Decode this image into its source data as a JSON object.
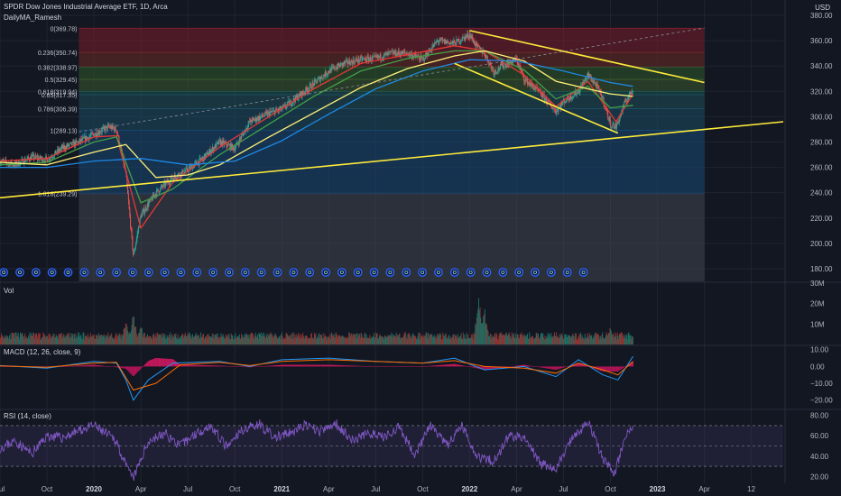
{
  "header": {
    "symbol_line": "SPDR Dow Jones Industrial Average ETF, 1D, Arca",
    "indicator_label": "DailyMA_Ramesh",
    "currency": "USD"
  },
  "panes": {
    "volume_label": "Vol",
    "macd_label": "MACD (12, 26, close, 9)",
    "rsi_label": "RSI (14, close)"
  },
  "colors": {
    "background": "#131722",
    "grid": "#1f2430",
    "candle_up": "#26a69a",
    "candle_down": "#ef5350",
    "trendline": "#ffeb3b",
    "ma_fast": "#e53935",
    "ma_mid": "#43a047",
    "ma_slow": "#fff176",
    "ma_long": "#1e88e5",
    "macd_line": "#2196f3",
    "signal_line": "#ff6d00",
    "rsi_line": "#7e57c2",
    "event_marker": "#2962ff"
  },
  "chart_data": [
    {
      "type": "candlestick",
      "title": "SPDR Dow Jones Industrial Average ETF, 1D, Arca",
      "ylabel": "USD",
      "ylim": [
        170,
        385
      ],
      "y_ticks": [
        "380.00",
        "360.00",
        "340.00",
        "320.00",
        "300.00",
        "280.00",
        "260.00",
        "240.00",
        "220.00",
        "200.00",
        "180.00"
      ],
      "x_ticks": [
        "Jul",
        "Oct",
        "2020",
        "Apr",
        "Jul",
        "Oct",
        "2021",
        "Apr",
        "Jul",
        "Oct",
        "2022",
        "Apr",
        "Jul",
        "Oct",
        "2023",
        "Apr",
        "12"
      ],
      "x_range": [
        2019.5,
        2023.67
      ],
      "price_path": [
        [
          2019.5,
          265
        ],
        [
          2019.58,
          262
        ],
        [
          2019.67,
          268
        ],
        [
          2019.75,
          266
        ],
        [
          2019.83,
          275
        ],
        [
          2019.92,
          280
        ],
        [
          2020.0,
          286
        ],
        [
          2020.08,
          292
        ],
        [
          2020.12,
          290
        ],
        [
          2020.17,
          255
        ],
        [
          2020.21,
          190
        ],
        [
          2020.25,
          222
        ],
        [
          2020.33,
          240
        ],
        [
          2020.42,
          252
        ],
        [
          2020.5,
          258
        ],
        [
          2020.58,
          267
        ],
        [
          2020.67,
          280
        ],
        [
          2020.75,
          275
        ],
        [
          2020.83,
          296
        ],
        [
          2020.92,
          302
        ],
        [
          2021.0,
          306
        ],
        [
          2021.08,
          315
        ],
        [
          2021.17,
          326
        ],
        [
          2021.25,
          336
        ],
        [
          2021.33,
          342
        ],
        [
          2021.42,
          345
        ],
        [
          2021.5,
          346
        ],
        [
          2021.58,
          350
        ],
        [
          2021.67,
          350
        ],
        [
          2021.75,
          345
        ],
        [
          2021.83,
          360
        ],
        [
          2021.92,
          358
        ],
        [
          2022.0,
          365
        ],
        [
          2022.04,
          355
        ],
        [
          2022.08,
          350
        ],
        [
          2022.13,
          335
        ],
        [
          2022.17,
          340
        ],
        [
          2022.25,
          345
        ],
        [
          2022.29,
          330
        ],
        [
          2022.38,
          318
        ],
        [
          2022.46,
          304
        ],
        [
          2022.5,
          312
        ],
        [
          2022.58,
          320
        ],
        [
          2022.63,
          333
        ],
        [
          2022.67,
          326
        ],
        [
          2022.71,
          314
        ],
        [
          2022.75,
          294
        ],
        [
          2022.78,
          292
        ],
        [
          2022.83,
          312
        ],
        [
          2022.87,
          322
        ]
      ],
      "moving_averages": [
        {
          "name": "MA fast",
          "color": "#e53935",
          "values": [
            [
              2019.5,
              265
            ],
            [
              2019.75,
              267
            ],
            [
              2020.0,
              284
            ],
            [
              2020.12,
              285
            ],
            [
              2020.25,
              212
            ],
            [
              2020.42,
              248
            ],
            [
              2020.67,
              276
            ],
            [
              2020.92,
              299
            ],
            [
              2021.17,
              322
            ],
            [
              2021.42,
              342
            ],
            [
              2021.67,
              349
            ],
            [
              2021.92,
              356
            ],
            [
              2022.08,
              352
            ],
            [
              2022.29,
              333
            ],
            [
              2022.46,
              308
            ],
            [
              2022.63,
              328
            ],
            [
              2022.78,
              296
            ],
            [
              2022.87,
              318
            ]
          ]
        },
        {
          "name": "MA mid",
          "color": "#43a047",
          "values": [
            [
              2019.5,
              262
            ],
            [
              2019.75,
              264
            ],
            [
              2020.0,
              280
            ],
            [
              2020.12,
              284
            ],
            [
              2020.25,
              232
            ],
            [
              2020.42,
              243
            ],
            [
              2020.67,
              270
            ],
            [
              2020.92,
              293
            ],
            [
              2021.17,
              316
            ],
            [
              2021.42,
              336
            ],
            [
              2021.67,
              346
            ],
            [
              2021.92,
              352
            ],
            [
              2022.08,
              352
            ],
            [
              2022.29,
              337
            ],
            [
              2022.46,
              314
            ],
            [
              2022.63,
              324
            ],
            [
              2022.75,
              307
            ],
            [
              2022.87,
              309
            ]
          ]
        },
        {
          "name": "MA slow",
          "color": "#fff176",
          "values": [
            [
              2019.5,
              264
            ],
            [
              2019.75,
              262
            ],
            [
              2020.0,
              272
            ],
            [
              2020.17,
              278
            ],
            [
              2020.33,
              252
            ],
            [
              2020.5,
              254
            ],
            [
              2020.67,
              262
            ],
            [
              2020.92,
              283
            ],
            [
              2021.17,
              303
            ],
            [
              2021.42,
              323
            ],
            [
              2021.67,
              338
            ],
            [
              2021.92,
              348
            ],
            [
              2022.08,
              352
            ],
            [
              2022.29,
              344
            ],
            [
              2022.46,
              328
            ],
            [
              2022.63,
              322
            ],
            [
              2022.75,
              318
            ],
            [
              2022.87,
              316
            ]
          ]
        },
        {
          "name": "MA long",
          "color": "#1e88e5",
          "values": [
            [
              2019.5,
              260
            ],
            [
              2019.75,
              260
            ],
            [
              2020.0,
              265
            ],
            [
              2020.25,
              267
            ],
            [
              2020.5,
              262
            ],
            [
              2020.75,
              265
            ],
            [
              2021.0,
              281
            ],
            [
              2021.25,
              302
            ],
            [
              2021.5,
              322
            ],
            [
              2021.75,
              336
            ],
            [
              2022.0,
              345
            ],
            [
              2022.25,
              344
            ],
            [
              2022.5,
              336
            ],
            [
              2022.75,
              327
            ],
            [
              2022.87,
              324
            ]
          ]
        }
      ],
      "fibonacci_levels": [
        {
          "ratio": "0",
          "value": 369.78,
          "label": "0(369.78)",
          "zone_color": "#7b1e2a"
        },
        {
          "ratio": "0.236",
          "value": 350.74,
          "label": "0.236(350.74)",
          "zone_color": "#6e2a25"
        },
        {
          "ratio": "0.382",
          "value": 338.97,
          "label": "0.382(338.97)",
          "zone_color": "#2f5a2c"
        },
        {
          "ratio": "0.5",
          "value": 329.45,
          "label": "0.5(329.45)",
          "zone_color": "#3a5a2d"
        },
        {
          "ratio": "0.618",
          "value": 319.94,
          "label": "0.618(319.94)",
          "zone_color": "#1c5450"
        },
        {
          "ratio": "0.65",
          "value": 317.35,
          "label": "0.65(317.35)",
          "zone_color": "#1f4f5a"
        },
        {
          "ratio": "0.786",
          "value": 306.39,
          "label": "0.786(306.39)",
          "zone_color": "#1c4d63"
        },
        {
          "ratio": "1",
          "value": 289.13,
          "label": "1(289.13)",
          "zone_color": "#174874"
        },
        {
          "ratio": "1.618",
          "value": 239.29,
          "label": "1.618(239.29)",
          "zone_color": "#1d3d66"
        }
      ],
      "fib_x_range": [
        2019.92,
        2023.25
      ],
      "trendlines": [
        {
          "name": "support",
          "points": [
            [
              2019.5,
              236
            ],
            [
              2023.67,
              296
            ]
          ]
        },
        {
          "name": "channel upper",
          "points": [
            [
              2022.0,
              368
            ],
            [
              2023.25,
              327
            ]
          ]
        },
        {
          "name": "channel lower",
          "points": [
            [
              2021.92,
              342
            ],
            [
              2022.79,
              287
            ]
          ]
        },
        {
          "name": "channel upper extension",
          "dashed": true,
          "points": [
            [
              2019.92,
              288
            ],
            [
              2023.25,
              370
            ]
          ]
        }
      ],
      "last_price_tag": "",
      "event_markers_count": 37
    },
    {
      "type": "bar",
      "title": "Vol",
      "y_ticks": [
        "30M",
        "20M",
        "10M"
      ],
      "ylim": [
        0,
        30
      ],
      "ylabel": "",
      "spikes": [
        [
          2020.17,
          12
        ],
        [
          2020.21,
          17
        ],
        [
          2020.25,
          10
        ],
        [
          2022.05,
          30
        ],
        [
          2022.08,
          19
        ],
        [
          2022.75,
          9
        ]
      ],
      "baseline": 4
    },
    {
      "type": "line",
      "title": "MACD (12, 26, close, 9)",
      "y_ticks": [
        "10.00",
        "0.00",
        "−10.00",
        "−20.00"
      ],
      "ylim": [
        -25,
        12
      ],
      "series": [
        {
          "name": "MACD",
          "color": "#2196f3",
          "values": [
            [
              2019.5,
              0.5
            ],
            [
              2019.75,
              -1
            ],
            [
              2020.0,
              3
            ],
            [
              2020.12,
              2
            ],
            [
              2020.17,
              -8
            ],
            [
              2020.21,
              -20
            ],
            [
              2020.29,
              -8
            ],
            [
              2020.42,
              2
            ],
            [
              2020.67,
              3
            ],
            [
              2020.83,
              0
            ],
            [
              2021.0,
              4
            ],
            [
              2021.25,
              5
            ],
            [
              2021.5,
              3
            ],
            [
              2021.75,
              2
            ],
            [
              2021.92,
              5
            ],
            [
              2022.08,
              -2
            ],
            [
              2022.29,
              0
            ],
            [
              2022.46,
              -6
            ],
            [
              2022.58,
              4
            ],
            [
              2022.71,
              -5
            ],
            [
              2022.79,
              -8
            ],
            [
              2022.87,
              6
            ]
          ]
        },
        {
          "name": "Signal",
          "color": "#ff6d00",
          "values": [
            [
              2019.5,
              0.3
            ],
            [
              2019.75,
              -0.5
            ],
            [
              2020.0,
              2
            ],
            [
              2020.12,
              2.5
            ],
            [
              2020.21,
              -14
            ],
            [
              2020.33,
              -10
            ],
            [
              2020.46,
              1
            ],
            [
              2020.67,
              2.5
            ],
            [
              2020.83,
              0.5
            ],
            [
              2021.0,
              3
            ],
            [
              2021.25,
              4
            ],
            [
              2021.5,
              3
            ],
            [
              2021.75,
              2
            ],
            [
              2021.92,
              3.5
            ],
            [
              2022.08,
              0
            ],
            [
              2022.29,
              -1
            ],
            [
              2022.46,
              -4
            ],
            [
              2022.58,
              2
            ],
            [
              2022.71,
              -2
            ],
            [
              2022.79,
              -5
            ],
            [
              2022.87,
              3
            ]
          ]
        }
      ]
    },
    {
      "type": "line",
      "title": "RSI (14, close)",
      "y_ticks": [
        "80.00",
        "60.00",
        "40.00",
        "20.00"
      ],
      "ylim": [
        15,
        85
      ],
      "band": [
        30,
        70
      ],
      "series": [
        {
          "name": "RSI",
          "color": "#7e57c2",
          "values": [
            [
              2019.5,
              48
            ],
            [
              2019.58,
              55
            ],
            [
              2019.67,
              42
            ],
            [
              2019.75,
              60
            ],
            [
              2019.83,
              58
            ],
            [
              2019.92,
              65
            ],
            [
              2020.0,
              70
            ],
            [
              2020.08,
              60
            ],
            [
              2020.12,
              55
            ],
            [
              2020.17,
              30
            ],
            [
              2020.21,
              18
            ],
            [
              2020.29,
              55
            ],
            [
              2020.38,
              62
            ],
            [
              2020.46,
              50
            ],
            [
              2020.54,
              62
            ],
            [
              2020.62,
              70
            ],
            [
              2020.71,
              48
            ],
            [
              2020.79,
              66
            ],
            [
              2020.88,
              72
            ],
            [
              2020.96,
              58
            ],
            [
              2021.04,
              62
            ],
            [
              2021.12,
              70
            ],
            [
              2021.21,
              64
            ],
            [
              2021.29,
              72
            ],
            [
              2021.38,
              55
            ],
            [
              2021.46,
              63
            ],
            [
              2021.54,
              58
            ],
            [
              2021.62,
              68
            ],
            [
              2021.71,
              42
            ],
            [
              2021.79,
              70
            ],
            [
              2021.88,
              50
            ],
            [
              2021.96,
              70
            ],
            [
              2022.04,
              40
            ],
            [
              2022.13,
              35
            ],
            [
              2022.21,
              60
            ],
            [
              2022.29,
              58
            ],
            [
              2022.38,
              32
            ],
            [
              2022.46,
              28
            ],
            [
              2022.54,
              55
            ],
            [
              2022.63,
              74
            ],
            [
              2022.71,
              38
            ],
            [
              2022.77,
              22
            ],
            [
              2022.83,
              60
            ],
            [
              2022.87,
              68
            ]
          ]
        }
      ]
    }
  ]
}
